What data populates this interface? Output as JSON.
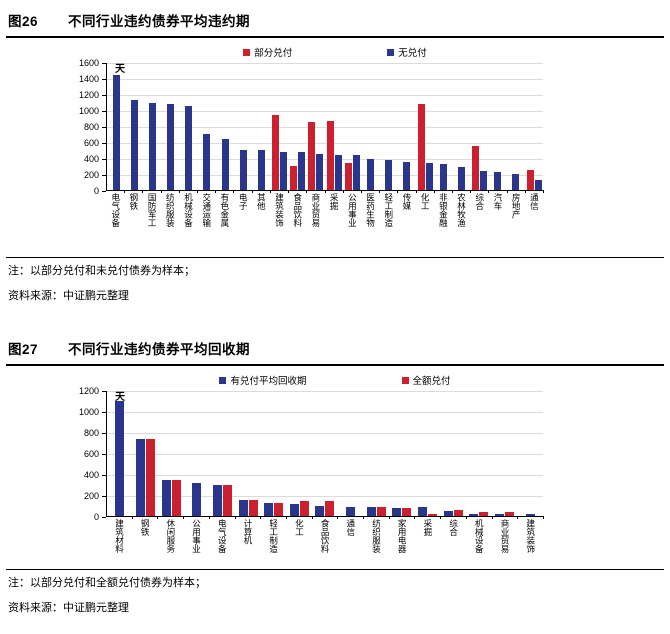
{
  "figure26": {
    "label": "图26",
    "title": "不同行业违约债券平均违约期",
    "note": "注：以部分兑付和未兑付债券为样本；",
    "source": "资料来源：中证鹏元整理"
  },
  "figure27": {
    "label": "图27",
    "title": "不同行业违约债券平均回收期",
    "note": "注：以部分兑付和全额兑付债券为样本；",
    "source": "资料来源：中证鹏元整理"
  },
  "colors": {
    "red": "#CA2030",
    "blue": "#29368C",
    "grid": "#DCDCDC",
    "axis": "#000000"
  },
  "chart_data": [
    {
      "id": "fig26",
      "type": "bar",
      "title": "不同行业违约债券平均违约期",
      "xlabel": "",
      "ylabel": "天",
      "ylim": [
        0,
        1600
      ],
      "ytick_step": 200,
      "yticks": [
        0,
        200,
        400,
        600,
        800,
        1000,
        1200,
        1400,
        1600
      ],
      "grid": true,
      "legend_position": "top",
      "legend": [
        {
          "name": "部分兑付",
          "color": "#CA2030"
        },
        {
          "name": "无兑付",
          "color": "#29368C"
        }
      ],
      "categories": [
        "电气设备",
        "钢铁",
        "国防军工",
        "纺织服装",
        "机械设备",
        "交通运输",
        "有色金属",
        "电子",
        "其他",
        "建筑装饰",
        "食品饮料",
        "商业贸易",
        "采掘",
        "公用事业",
        "医药生物",
        "轻工制造",
        "传媒",
        "化工",
        "非银金融",
        "农林牧渔",
        "综合",
        "汽车",
        "房地产",
        "通信"
      ],
      "series": [
        {
          "name": "部分兑付",
          "color": "#CA2030",
          "values": [
            null,
            null,
            null,
            null,
            null,
            null,
            null,
            null,
            null,
            940,
            305,
            855,
            865,
            340,
            null,
            null,
            null,
            1080,
            null,
            null,
            545,
            null,
            null,
            250
          ]
        },
        {
          "name": "无兑付",
          "color": "#29368C",
          "values": [
            1440,
            1130,
            1090,
            1080,
            1050,
            695,
            640,
            505,
            495,
            470,
            475,
            455,
            440,
            440,
            390,
            380,
            355,
            335,
            320,
            290,
            240,
            225,
            205,
            130
          ]
        }
      ]
    },
    {
      "id": "fig27",
      "type": "bar",
      "title": "不同行业违约债券平均回收期",
      "xlabel": "",
      "ylabel": "天",
      "ylim": [
        0,
        1200
      ],
      "ytick_step": 200,
      "yticks": [
        0,
        200,
        400,
        600,
        800,
        1000,
        1200
      ],
      "grid": true,
      "legend_position": "top",
      "legend": [
        {
          "name": "有兑付平均回收期",
          "color": "#29368C"
        },
        {
          "name": "全额兑付",
          "color": "#CA2030"
        }
      ],
      "categories": [
        "建筑材料",
        "钢铁",
        "休闲服务",
        "公用事业",
        "电气设备",
        "计算机",
        "轻工制造",
        "化工",
        "食品饮料",
        "通信",
        "纺织服装",
        "家用电器",
        "采掘",
        "综合",
        "机械设备",
        "商业贸易",
        "建筑装饰"
      ],
      "series": [
        {
          "name": "有兑付平均回收期",
          "color": "#29368C",
          "values": [
            1100,
            730,
            340,
            315,
            295,
            150,
            125,
            110,
            95,
            90,
            85,
            75,
            90,
            45,
            15,
            15,
            15
          ]
        },
        {
          "name": "全额兑付",
          "color": "#CA2030",
          "values": [
            null,
            730,
            340,
            null,
            295,
            150,
            125,
            145,
            140,
            null,
            85,
            75,
            20,
            60,
            40,
            35,
            null
          ]
        }
      ]
    }
  ]
}
